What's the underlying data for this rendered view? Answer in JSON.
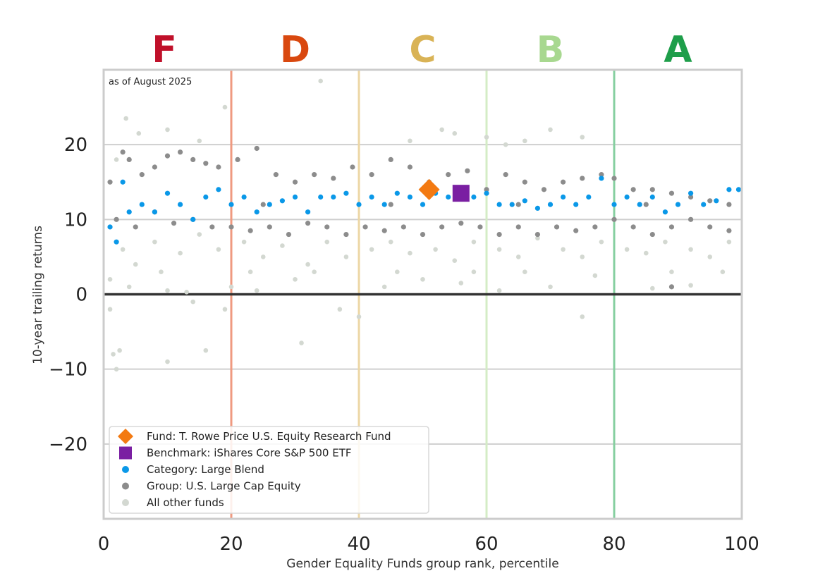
{
  "chart_data": {
    "type": "scatter",
    "note": "as of August 2025",
    "xlabel": "Gender Equality Funds group rank, percentile",
    "ylabel": "10-year trailing returns",
    "xlim": [
      0,
      100
    ],
    "ylim": [
      -30,
      30
    ],
    "x_ticks": [
      0,
      20,
      40,
      60,
      80,
      100
    ],
    "y_ticks": [
      -20,
      -10,
      0,
      10,
      20
    ],
    "y_tick_labels": [
      "−20",
      "−10",
      "0",
      "10",
      "20"
    ],
    "grid": "horizontal",
    "legend_position": "bottom-left",
    "grade_bands": [
      {
        "label": "F",
        "center": 9.5,
        "color": "#c0102a"
      },
      {
        "label": "D",
        "center": 30,
        "color": "#d9480f"
      },
      {
        "label": "C",
        "center": 50,
        "color": "#d9b356"
      },
      {
        "label": "B",
        "center": 70,
        "color": "#a8d890"
      },
      {
        "label": "A",
        "center": 90,
        "color": "#1e9e4a"
      }
    ],
    "band_lines": [
      {
        "x": 20,
        "color": "#ef9a80"
      },
      {
        "x": 40,
        "color": "#ecd6a4"
      },
      {
        "x": 60,
        "color": "#d4ecc6"
      },
      {
        "x": 80,
        "color": "#86cfa0"
      },
      {
        "x": 100,
        "color": "#86cfa0"
      }
    ],
    "series": [
      {
        "name": "All other funds",
        "color": "#d3d8d1",
        "marker": "dot",
        "points": [
          [
            2,
            18
          ],
          [
            3.5,
            23.5
          ],
          [
            5.5,
            21.5
          ],
          [
            10,
            22
          ],
          [
            15,
            20.5
          ],
          [
            19,
            25
          ],
          [
            34,
            28.5
          ],
          [
            48,
            20.5
          ],
          [
            53,
            22
          ],
          [
            55,
            21.5
          ],
          [
            60,
            21
          ],
          [
            63,
            20
          ],
          [
            66,
            20.5
          ],
          [
            70,
            22
          ],
          [
            75,
            21
          ],
          [
            3,
            6
          ],
          [
            5,
            4
          ],
          [
            8,
            7
          ],
          [
            12,
            5.5
          ],
          [
            15,
            8
          ],
          [
            18,
            6
          ],
          [
            22,
            7
          ],
          [
            25,
            5
          ],
          [
            28,
            6.5
          ],
          [
            32,
            4
          ],
          [
            35,
            7
          ],
          [
            38,
            5
          ],
          [
            42,
            6
          ],
          [
            45,
            7
          ],
          [
            48,
            5.5
          ],
          [
            52,
            6
          ],
          [
            55,
            4.5
          ],
          [
            58,
            7
          ],
          [
            62,
            6
          ],
          [
            65,
            5
          ],
          [
            68,
            7.5
          ],
          [
            72,
            6
          ],
          [
            75,
            5
          ],
          [
            78,
            7
          ],
          [
            82,
            6
          ],
          [
            85,
            5.5
          ],
          [
            88,
            7
          ],
          [
            92,
            6
          ],
          [
            95,
            5
          ],
          [
            98,
            7
          ],
          [
            1,
            2
          ],
          [
            4,
            1
          ],
          [
            10,
            0.5
          ],
          [
            13,
            0.3
          ],
          [
            20,
            1
          ],
          [
            24,
            0.5
          ],
          [
            30,
            2
          ],
          [
            44,
            1
          ],
          [
            50,
            2
          ],
          [
            56,
            1.5
          ],
          [
            62,
            0.5
          ],
          [
            70,
            1
          ],
          [
            86,
            0.8
          ],
          [
            92,
            1.2
          ],
          [
            1,
            -2
          ],
          [
            1.5,
            -8
          ],
          [
            2.5,
            -7.5
          ],
          [
            2,
            -10
          ],
          [
            10,
            -9
          ],
          [
            14,
            -1
          ],
          [
            16,
            -7.5
          ],
          [
            19,
            -2
          ],
          [
            31,
            -6.5
          ],
          [
            37,
            -2
          ],
          [
            40,
            -3
          ],
          [
            75,
            -3
          ],
          [
            9,
            3
          ],
          [
            23,
            3
          ],
          [
            33,
            3
          ],
          [
            46,
            3
          ],
          [
            58,
            3
          ],
          [
            66,
            3
          ],
          [
            77,
            2.5
          ],
          [
            89,
            3
          ],
          [
            97,
            3
          ]
        ]
      },
      {
        "name": "Group: U.S. Large Cap Equity",
        "color": "#8c8c8c",
        "marker": "dot",
        "points": [
          [
            1,
            15
          ],
          [
            3,
            19
          ],
          [
            4,
            18
          ],
          [
            6,
            16
          ],
          [
            8,
            17
          ],
          [
            10,
            18.5
          ],
          [
            12,
            19
          ],
          [
            14,
            18
          ],
          [
            16,
            17.5
          ],
          [
            18,
            17
          ],
          [
            21,
            18
          ],
          [
            24,
            19.5
          ],
          [
            27,
            16
          ],
          [
            30,
            15
          ],
          [
            33,
            16
          ],
          [
            36,
            15.5
          ],
          [
            39,
            17
          ],
          [
            42,
            16
          ],
          [
            45,
            18
          ],
          [
            48,
            17
          ],
          [
            51,
            15
          ],
          [
            54,
            16
          ],
          [
            57,
            16.5
          ],
          [
            60,
            14
          ],
          [
            63,
            16
          ],
          [
            66,
            15
          ],
          [
            69,
            14
          ],
          [
            72,
            15
          ],
          [
            75,
            15.5
          ],
          [
            78,
            16
          ],
          [
            80,
            15.5
          ],
          [
            83,
            14
          ],
          [
            86,
            14
          ],
          [
            89,
            13.5
          ],
          [
            92,
            13
          ],
          [
            95,
            12.5
          ],
          [
            98,
            12
          ],
          [
            2,
            10
          ],
          [
            5,
            9
          ],
          [
            8,
            11
          ],
          [
            11,
            9.5
          ],
          [
            14,
            10
          ],
          [
            17,
            9
          ],
          [
            20,
            9
          ],
          [
            23,
            8.5
          ],
          [
            26,
            9
          ],
          [
            29,
            8
          ],
          [
            32,
            9.5
          ],
          [
            35,
            9
          ],
          [
            38,
            8
          ],
          [
            41,
            9
          ],
          [
            44,
            8.5
          ],
          [
            47,
            9
          ],
          [
            50,
            8
          ],
          [
            53,
            9
          ],
          [
            56,
            9.5
          ],
          [
            59,
            9
          ],
          [
            62,
            8
          ],
          [
            65,
            9
          ],
          [
            68,
            8
          ],
          [
            71,
            9
          ],
          [
            74,
            8.5
          ],
          [
            77,
            9
          ],
          [
            80,
            10
          ],
          [
            83,
            9
          ],
          [
            86,
            8
          ],
          [
            89,
            9
          ],
          [
            92,
            10
          ],
          [
            95,
            9
          ],
          [
            98,
            8.5
          ],
          [
            89,
            1
          ],
          [
            25,
            12
          ],
          [
            45,
            12
          ],
          [
            65,
            12
          ],
          [
            85,
            12
          ]
        ]
      },
      {
        "name": "Category: Large Blend",
        "color": "#0a98e8",
        "marker": "dot",
        "points": [
          [
            1,
            9
          ],
          [
            2,
            7
          ],
          [
            3,
            15
          ],
          [
            4,
            11
          ],
          [
            6,
            12
          ],
          [
            8,
            11
          ],
          [
            10,
            13.5
          ],
          [
            12,
            12
          ],
          [
            14,
            10
          ],
          [
            16,
            13
          ],
          [
            18,
            14
          ],
          [
            20,
            12
          ],
          [
            22,
            13
          ],
          [
            24,
            11
          ],
          [
            26,
            12
          ],
          [
            28,
            12.5
          ],
          [
            30,
            13
          ],
          [
            32,
            11
          ],
          [
            34,
            13
          ],
          [
            36,
            13
          ],
          [
            38,
            13.5
          ],
          [
            40,
            12
          ],
          [
            42,
            13
          ],
          [
            44,
            12
          ],
          [
            46,
            13.5
          ],
          [
            48,
            13
          ],
          [
            50,
            12
          ],
          [
            52,
            13.5
          ],
          [
            54,
            13
          ],
          [
            56,
            13.5
          ],
          [
            58,
            13
          ],
          [
            60,
            13.5
          ],
          [
            62,
            12
          ],
          [
            64,
            12
          ],
          [
            66,
            12.5
          ],
          [
            68,
            11.5
          ],
          [
            70,
            12
          ],
          [
            72,
            13
          ],
          [
            74,
            12
          ],
          [
            76,
            13
          ],
          [
            78,
            15.5
          ],
          [
            80,
            12
          ],
          [
            82,
            13
          ],
          [
            84,
            12
          ],
          [
            86,
            13
          ],
          [
            88,
            11
          ],
          [
            90,
            12
          ],
          [
            92,
            13.5
          ],
          [
            94,
            12
          ],
          [
            96,
            12.5
          ],
          [
            98,
            14
          ],
          [
            99.5,
            14
          ]
        ]
      },
      {
        "name": "Benchmark: iShares Core S&P 500 ETF",
        "color": "#7a1fa2",
        "marker": "square",
        "points": [
          [
            56,
            13.5
          ]
        ]
      },
      {
        "name": "Fund: T. Rowe Price U.S. Equity Research Fund",
        "color": "#f37a12",
        "marker": "diamond",
        "points": [
          [
            51,
            14
          ]
        ]
      }
    ],
    "legend": [
      {
        "label": "Fund: T. Rowe Price U.S. Equity Research Fund",
        "color": "#f37a12",
        "marker": "diamond"
      },
      {
        "label": "Benchmark: iShares Core S&P 500 ETF",
        "color": "#7a1fa2",
        "marker": "square"
      },
      {
        "label": "Category: Large Blend",
        "color": "#0a98e8",
        "marker": "dot"
      },
      {
        "label": "Group: U.S. Large Cap Equity",
        "color": "#8c8c8c",
        "marker": "dot"
      },
      {
        "label": "All other funds",
        "color": "#d3d8d1",
        "marker": "dot"
      }
    ]
  }
}
